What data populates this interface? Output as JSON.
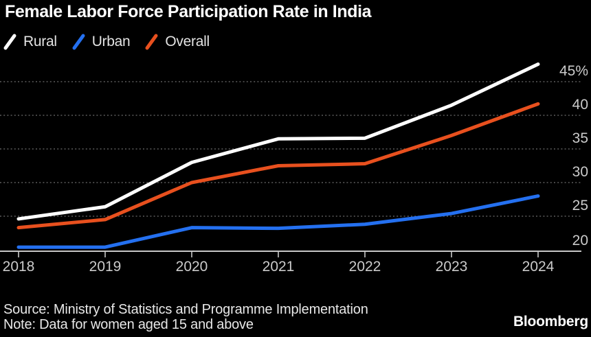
{
  "header": {
    "title": "Female Labor Force Participation Rate in India"
  },
  "legend": [
    {
      "label": "Rural",
      "color": "#ffffff"
    },
    {
      "label": "Urban",
      "color": "#2470f0"
    },
    {
      "label": "Overall",
      "color": "#e8501e"
    }
  ],
  "chart_data": {
    "type": "line",
    "title": "Female Labor Force Participation Rate in India",
    "x": [
      "2018",
      "2019",
      "2020",
      "2021",
      "2022",
      "2023",
      "2024"
    ],
    "series": [
      {
        "name": "Rural",
        "color": "#ffffff",
        "values": [
          24.6,
          26.4,
          33.0,
          36.5,
          36.6,
          41.5,
          47.6
        ]
      },
      {
        "name": "Urban",
        "color": "#2470f0",
        "values": [
          20.4,
          20.4,
          23.3,
          23.2,
          23.8,
          25.4,
          28.0
        ]
      },
      {
        "name": "Overall",
        "color": "#e8501e",
        "values": [
          23.3,
          24.5,
          30.0,
          32.5,
          32.8,
          37.0,
          41.7
        ]
      }
    ],
    "yticks": [
      {
        "label": "45%",
        "value": 45,
        "axis": false
      },
      {
        "label": "40",
        "value": 40,
        "axis": false
      },
      {
        "label": "35",
        "value": 35,
        "axis": false
      },
      {
        "label": "30",
        "value": 30,
        "axis": false
      },
      {
        "label": "25",
        "value": 25,
        "axis": false
      },
      {
        "label": "20",
        "value": 20,
        "axis": true
      }
    ],
    "xlabel": "",
    "ylabel": "",
    "ylim": [
      20,
      47.6
    ],
    "unit": "%",
    "grid": "dotted horizontal",
    "legend_position": "top-left",
    "colors": {
      "background": "#000000",
      "gridline": "#5c5c5c",
      "axis": "#c8c8c8",
      "tick_label": "#cbcbcb"
    }
  },
  "footer": {
    "source": "Source: Ministry of Statistics and Programme Implementation",
    "note": "Note: Data for women aged 15 and above",
    "brand": "Bloomberg"
  }
}
